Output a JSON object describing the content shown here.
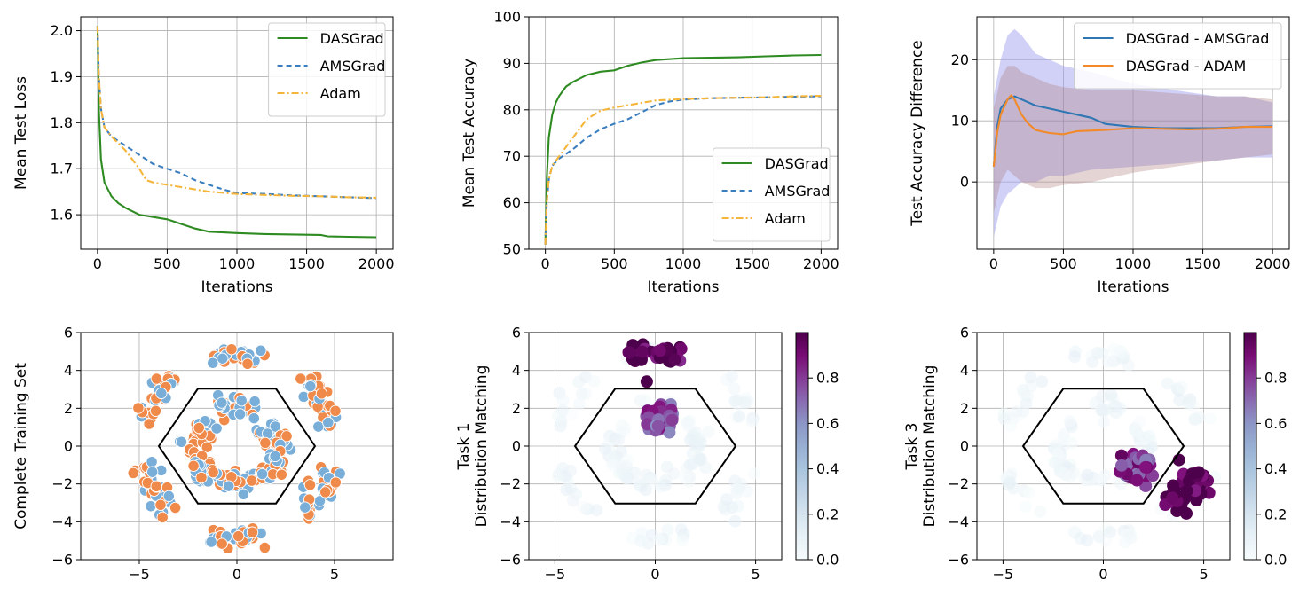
{
  "colors": {
    "dasgrad": "#2e8b22",
    "amsgrad": "#3a7ebf",
    "adam": "#f5b53a",
    "diff_ams": "#2f77b4",
    "diff_adam": "#f28a2a",
    "scatter_orange": "#ef8a4a",
    "scatter_blue": "#79aed9",
    "band_blue": "#9a9aee",
    "band_brown": "#a4706e",
    "grid": "#b0b0b0"
  },
  "chart_data": [
    {
      "id": "loss",
      "type": "line",
      "title": "",
      "xlabel": "Iterations",
      "ylabel": "Mean Test Loss",
      "xlim": [
        -120,
        2120
      ],
      "ylim": [
        1.525,
        2.03
      ],
      "xticks": [
        0,
        500,
        1000,
        1500,
        2000
      ],
      "xticklabels": [
        "0",
        "500",
        "1000",
        "1500",
        "2000"
      ],
      "yticks": [
        1.6,
        1.7,
        1.8,
        1.9,
        2.0
      ],
      "yticklabels": [
        "1.6",
        "1.7",
        "1.8",
        "1.9",
        "2.0"
      ],
      "grid": true,
      "legend": "top-right",
      "series": [
        {
          "name": "DASGrad",
          "color_key": "dasgrad",
          "dash": "solid",
          "x": [
            0,
            10,
            25,
            50,
            100,
            150,
            200,
            300,
            400,
            500,
            600,
            700,
            800,
            1000,
            1200,
            1400,
            1600,
            1650,
            1800,
            2000
          ],
          "y": [
            2.01,
            1.83,
            1.72,
            1.67,
            1.64,
            1.625,
            1.615,
            1.6,
            1.595,
            1.59,
            1.58,
            1.57,
            1.563,
            1.56,
            1.558,
            1.557,
            1.556,
            1.553,
            1.552,
            1.551
          ]
        },
        {
          "name": "AMSGrad",
          "color_key": "amsgrad",
          "dash": "6,4",
          "x": [
            0,
            10,
            25,
            50,
            100,
            200,
            300,
            400,
            500,
            600,
            700,
            800,
            900,
            1000,
            1200,
            1400,
            1600,
            1800,
            2000
          ],
          "y": [
            2.01,
            1.9,
            1.83,
            1.79,
            1.77,
            1.75,
            1.73,
            1.71,
            1.7,
            1.69,
            1.675,
            1.665,
            1.655,
            1.647,
            1.645,
            1.642,
            1.64,
            1.638,
            1.636
          ]
        },
        {
          "name": "Adam",
          "color_key": "adam",
          "dash": "8,3,2,3",
          "x": [
            0,
            10,
            25,
            50,
            100,
            200,
            300,
            350,
            400,
            500,
            600,
            700,
            800,
            1000,
            1200,
            1400,
            1600,
            1800,
            2000
          ],
          "y": [
            2.01,
            1.9,
            1.83,
            1.79,
            1.77,
            1.74,
            1.7,
            1.675,
            1.67,
            1.665,
            1.66,
            1.655,
            1.65,
            1.645,
            1.643,
            1.641,
            1.64,
            1.638,
            1.637
          ]
        }
      ]
    },
    {
      "id": "accuracy",
      "type": "line",
      "title": "",
      "xlabel": "Iterations",
      "ylabel": "Mean Test Accuracy",
      "xlim": [
        -120,
        2120
      ],
      "ylim": [
        50,
        100
      ],
      "xticks": [
        0,
        500,
        1000,
        1500,
        2000
      ],
      "xticklabels": [
        "0",
        "500",
        "1000",
        "1500",
        "2000"
      ],
      "yticks": [
        50,
        60,
        70,
        80,
        90,
        100
      ],
      "yticklabels": [
        "50",
        "60",
        "70",
        "80",
        "90",
        "100"
      ],
      "grid": true,
      "legend": "bottom-right",
      "series": [
        {
          "name": "DASGrad",
          "color_key": "dasgrad",
          "dash": "solid",
          "x": [
            0,
            10,
            25,
            50,
            75,
            100,
            150,
            200,
            300,
            400,
            500,
            600,
            700,
            800,
            1000,
            1200,
            1400,
            1600,
            1800,
            2000
          ],
          "y": [
            51,
            65,
            74,
            79,
            81.5,
            83,
            85,
            86,
            87.5,
            88.2,
            88.5,
            89.5,
            90.2,
            90.7,
            91.1,
            91.2,
            91.3,
            91.5,
            91.7,
            91.8
          ]
        },
        {
          "name": "AMSGrad",
          "color_key": "amsgrad",
          "dash": "6,4",
          "x": [
            0,
            10,
            25,
            50,
            100,
            200,
            300,
            400,
            500,
            600,
            700,
            800,
            900,
            1000,
            1200,
            1400,
            1600,
            1800,
            2000
          ],
          "y": [
            51,
            60,
            65,
            68,
            69.5,
            71.5,
            74,
            75.8,
            77,
            78,
            79.5,
            81,
            81.8,
            82.2,
            82.5,
            82.6,
            82.7,
            82.8,
            82.9
          ]
        },
        {
          "name": "Adam",
          "color_key": "adam",
          "dash": "8,3,2,3",
          "x": [
            0,
            10,
            25,
            50,
            100,
            200,
            300,
            400,
            500,
            600,
            700,
            800,
            1000,
            1200,
            1400,
            1600,
            1800,
            2000
          ],
          "y": [
            51,
            60,
            65,
            68,
            70,
            74,
            78,
            79.8,
            80.5,
            81,
            81.5,
            82,
            82.3,
            82.5,
            82.6,
            82.7,
            82.9,
            83
          ]
        }
      ]
    },
    {
      "id": "difference",
      "type": "line",
      "title": "",
      "xlabel": "Iterations",
      "ylabel": "Test Accuracy Difference",
      "xlim": [
        -120,
        2120
      ],
      "ylim": [
        -11,
        27
      ],
      "xticks": [
        0,
        500,
        1000,
        1500,
        2000
      ],
      "xticklabels": [
        "0",
        "500",
        "1000",
        "1500",
        "2000"
      ],
      "yticks": [
        0,
        10,
        20
      ],
      "yticklabels": [
        "0",
        "10",
        "20"
      ],
      "grid": true,
      "legend": "top-right",
      "bands": [
        {
          "color_key": "band_blue",
          "opacity": 0.45,
          "x": [
            0,
            50,
            100,
            150,
            200,
            300,
            400,
            500,
            700,
            1000,
            1300,
            1600,
            1800,
            2000
          ],
          "lo": [
            -9,
            -4,
            -2,
            -1,
            0,
            0,
            1,
            1,
            2,
            2.5,
            3,
            3.5,
            4,
            4
          ],
          "hi": [
            14,
            20,
            24,
            25,
            24,
            21,
            20,
            19,
            18,
            16,
            15,
            14,
            14,
            13
          ]
        },
        {
          "color_key": "band_brown",
          "opacity": 0.3,
          "x": [
            0,
            50,
            100,
            150,
            200,
            300,
            400,
            500,
            700,
            1000,
            1300,
            1600,
            1800,
            2000
          ],
          "lo": [
            -5,
            0,
            2,
            1,
            0,
            -1,
            -1,
            -0.5,
            0,
            1.5,
            2.5,
            3.5,
            4,
            4.5
          ],
          "hi": [
            12,
            17,
            19,
            19,
            18,
            17,
            16,
            15.5,
            15,
            15,
            14.5,
            14,
            14,
            13.5
          ]
        }
      ],
      "series": [
        {
          "name": "DASGrad - AMSGrad",
          "color_key": "diff_ams",
          "dash": "solid",
          "x": [
            0,
            25,
            50,
            100,
            150,
            200,
            300,
            400,
            500,
            600,
            700,
            800,
            1000,
            1200,
            1400,
            1600,
            1800,
            2000
          ],
          "y": [
            2.5,
            9,
            12,
            13.5,
            14,
            13.5,
            12.5,
            12,
            11.5,
            11,
            10.5,
            9.5,
            9,
            8.8,
            8.8,
            8.8,
            9,
            9.1
          ]
        },
        {
          "name": "DASGrad - ADAM",
          "color_key": "diff_adam",
          "dash": "solid",
          "x": [
            0,
            25,
            50,
            100,
            125,
            150,
            200,
            250,
            300,
            400,
            500,
            600,
            800,
            1000,
            1200,
            1400,
            1600,
            1800,
            2000
          ],
          "y": [
            2.5,
            8,
            11,
            13.5,
            14.2,
            13.5,
            11,
            9.5,
            8.5,
            8,
            7.8,
            8.3,
            8.5,
            8.8,
            8.7,
            8.6,
            8.7,
            9,
            9
          ]
        }
      ]
    },
    {
      "id": "training-set",
      "type": "scatter",
      "ylabel": "Complete Training Set",
      "xlim": [
        -8,
        8
      ],
      "ylim": [
        -6,
        6
      ],
      "xticks": [
        -5,
        0,
        5
      ],
      "xticklabels": [
        "−5",
        "0",
        "5"
      ],
      "yticks": [
        -6,
        -4,
        -2,
        0,
        2,
        4,
        6
      ],
      "yticklabels": [
        "−6",
        "−4",
        "−2",
        "0",
        "2",
        "4",
        "6"
      ],
      "grid": true,
      "hexagon": {
        "center": [
          0,
          0
        ],
        "radius": 4
      },
      "clusters": [
        {
          "center": [
            0,
            4.8
          ],
          "dir": [
            1,
            0
          ],
          "len": 3,
          "wid": 0.25
        },
        {
          "center": [
            0,
            -4.8
          ],
          "dir": [
            1,
            0
          ],
          "len": 3,
          "wid": 0.25
        },
        {
          "center": [
            4.15,
            2.4
          ],
          "dir": [
            0.5,
            -0.866
          ],
          "len": 3,
          "wid": 0.3
        },
        {
          "center": [
            4.15,
            -2.4
          ],
          "dir": [
            0.5,
            0.866
          ],
          "len": 3,
          "wid": 0.3
        },
        {
          "center": [
            -4.15,
            2.4
          ],
          "dir": [
            0.5,
            0.866
          ],
          "len": 3,
          "wid": 0.3
        },
        {
          "center": [
            -4.15,
            -2.4
          ],
          "dir": [
            0.5,
            -0.866
          ],
          "len": 3,
          "wid": 0.3
        },
        {
          "center": [
            0,
            2.1
          ],
          "dir": [
            1,
            0
          ],
          "len": 2,
          "wid": 0.3
        },
        {
          "center": [
            0,
            -1.9
          ],
          "dir": [
            1,
            0
          ],
          "len": 2,
          "wid": 0.3
        },
        {
          "center": [
            1.9,
            0.4
          ],
          "dir": [
            0.5,
            -0.866
          ],
          "len": 2,
          "wid": 0.3
        },
        {
          "center": [
            -1.9,
            0.4
          ],
          "dir": [
            0.5,
            0.866
          ],
          "len": 2,
          "wid": 0.3
        },
        {
          "center": [
            -1.8,
            -1.2
          ],
          "dir": [
            0.5,
            -0.866
          ],
          "len": 1.5,
          "wid": 0.3
        },
        {
          "center": [
            1.8,
            -1.2
          ],
          "dir": [
            0.5,
            0.866
          ],
          "len": 1.5,
          "wid": 0.3
        }
      ]
    },
    {
      "id": "task1",
      "type": "scatter",
      "ylabel": "Task 1",
      "ylabel2": "Distribution Matching",
      "xlim": [
        -6.3,
        6.3
      ],
      "ylim": [
        -6,
        6
      ],
      "xticks": [
        -5,
        0,
        5
      ],
      "xticklabels": [
        "−5",
        "0",
        "5"
      ],
      "yticks": [
        -6,
        -4,
        -2,
        0,
        2,
        4,
        6
      ],
      "yticklabels": [
        "−6",
        "−4",
        "−2",
        "0",
        "2",
        "4",
        "6"
      ],
      "grid": true,
      "hexagon": {
        "center": [
          0,
          0
        ],
        "radius": 4
      },
      "colorbar": {
        "ticks": [
          0.0,
          0.2,
          0.4,
          0.6,
          0.8
        ],
        "ticklabels": [
          "0.0",
          "0.2",
          "0.4",
          "0.6",
          "0.8"
        ],
        "vmin": 0,
        "vmax": 1
      },
      "hot_clusters": [
        {
          "center": [
            0,
            4.85
          ],
          "dir": [
            1,
            0
          ],
          "len": 2.7,
          "wid": 0.25,
          "v": 0.98
        },
        {
          "center": [
            0.2,
            1.5
          ],
          "dir": [
            1,
            0
          ],
          "len": 1.4,
          "wid": 0.45,
          "v": 0.75
        },
        {
          "center": [
            -0.4,
            3.4
          ],
          "dir": [
            1,
            0
          ],
          "len": 0.1,
          "wid": 0.05,
          "v": 0.9
        }
      ]
    },
    {
      "id": "task3",
      "type": "scatter",
      "ylabel": "Task 3",
      "ylabel2": "Distribution Matching",
      "xlim": [
        -6.3,
        6.3
      ],
      "ylim": [
        -6,
        6
      ],
      "xticks": [
        -5,
        0,
        5
      ],
      "xticklabels": [
        "−5",
        "0",
        "5"
      ],
      "yticks": [
        -6,
        -4,
        -2,
        0,
        2,
        4,
        6
      ],
      "yticklabels": [
        "−6",
        "−4",
        "−2",
        "0",
        "2",
        "4",
        "6"
      ],
      "grid": true,
      "hexagon": {
        "center": [
          0,
          0
        ],
        "radius": 4
      },
      "colorbar": {
        "ticks": [
          0.0,
          0.2,
          0.4,
          0.6,
          0.8
        ],
        "ticklabels": [
          "0.0",
          "0.2",
          "0.4",
          "0.6",
          "0.8"
        ],
        "vmin": 0,
        "vmax": 1
      },
      "hot_clusters": [
        {
          "center": [
            4.1,
            -2.3
          ],
          "dir": [
            0.5,
            0.866
          ],
          "len": 2.4,
          "wid": 0.45,
          "v": 0.99
        },
        {
          "center": [
            1.6,
            -1.1
          ],
          "dir": [
            0.5,
            0.866
          ],
          "len": 1.4,
          "wid": 0.4,
          "v": 0.8
        }
      ]
    }
  ]
}
